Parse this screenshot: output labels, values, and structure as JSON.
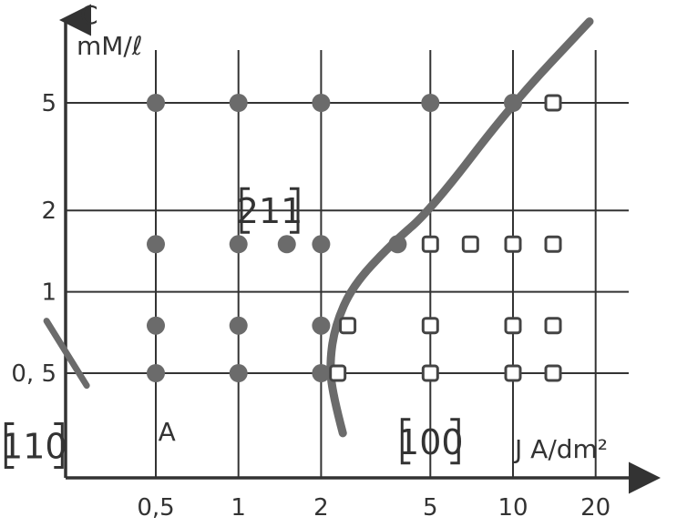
{
  "chart_data": {
    "type": "scatter",
    "xlabel": "J A/dm²",
    "ylabel": "C mM/ℓ",
    "x_scale": "log",
    "y_scale": "log",
    "grid": true,
    "x_ticks": [
      {
        "value": 0.5,
        "label": "0,5"
      },
      {
        "value": 1,
        "label": "1"
      },
      {
        "value": 2,
        "label": "2"
      },
      {
        "value": 5,
        "label": "5"
      },
      {
        "value": 10,
        "label": "10"
      },
      {
        "value": 20,
        "label": "20"
      }
    ],
    "y_ticks": [
      {
        "value": 0.5,
        "label": "0, 5"
      },
      {
        "value": 1,
        "label": "1"
      },
      {
        "value": 2,
        "label": "2"
      },
      {
        "value": 5,
        "label": "5"
      }
    ],
    "series": [
      {
        "marker": "filled-circle",
        "points": [
          [
            0.5,
            5
          ],
          [
            1,
            5
          ],
          [
            2,
            5
          ],
          [
            5,
            5
          ],
          [
            10,
            5
          ],
          [
            0.5,
            1.5
          ],
          [
            1,
            1.5
          ],
          [
            1.5,
            1.5
          ],
          [
            2,
            1.5
          ],
          [
            3.8,
            1.5
          ],
          [
            0.5,
            0.75
          ],
          [
            1,
            0.75
          ],
          [
            2,
            0.75
          ],
          [
            0.5,
            0.5
          ],
          [
            1,
            0.5
          ],
          [
            2,
            0.5
          ]
        ]
      },
      {
        "marker": "open-square",
        "points": [
          [
            14,
            5
          ],
          [
            5,
            1.5
          ],
          [
            7,
            1.5
          ],
          [
            10,
            1.5
          ],
          [
            14,
            1.5
          ],
          [
            2.5,
            0.75
          ],
          [
            5,
            0.75
          ],
          [
            10,
            0.75
          ],
          [
            14,
            0.75
          ],
          [
            2.3,
            0.5
          ],
          [
            5,
            0.5
          ],
          [
            10,
            0.5
          ],
          [
            14,
            0.5
          ]
        ]
      }
    ],
    "boundaries": [
      {
        "points": [
          [
            2.4,
            0.3
          ],
          [
            2.2,
            0.42
          ],
          [
            2.15,
            0.55
          ],
          [
            2.25,
            0.75
          ],
          [
            2.6,
            1.05
          ],
          [
            3.6,
            1.5
          ],
          [
            5,
            2.0
          ],
          [
            10,
            5
          ],
          [
            19,
            10
          ]
        ]
      },
      {
        "points": [
          [
            0.2,
            0.78
          ],
          [
            0.28,
            0.45
          ]
        ]
      }
    ],
    "annotations": [
      {
        "text": "[211]",
        "x": 1.3,
        "y": 2.0
      },
      {
        "text": "[100]",
        "x": 5,
        "y": 0.28
      },
      {
        "text": "[110]",
        "x": 0.18,
        "y": 0.27
      },
      {
        "text": "A",
        "x": 0.51,
        "y": 0.3
      }
    ]
  }
}
